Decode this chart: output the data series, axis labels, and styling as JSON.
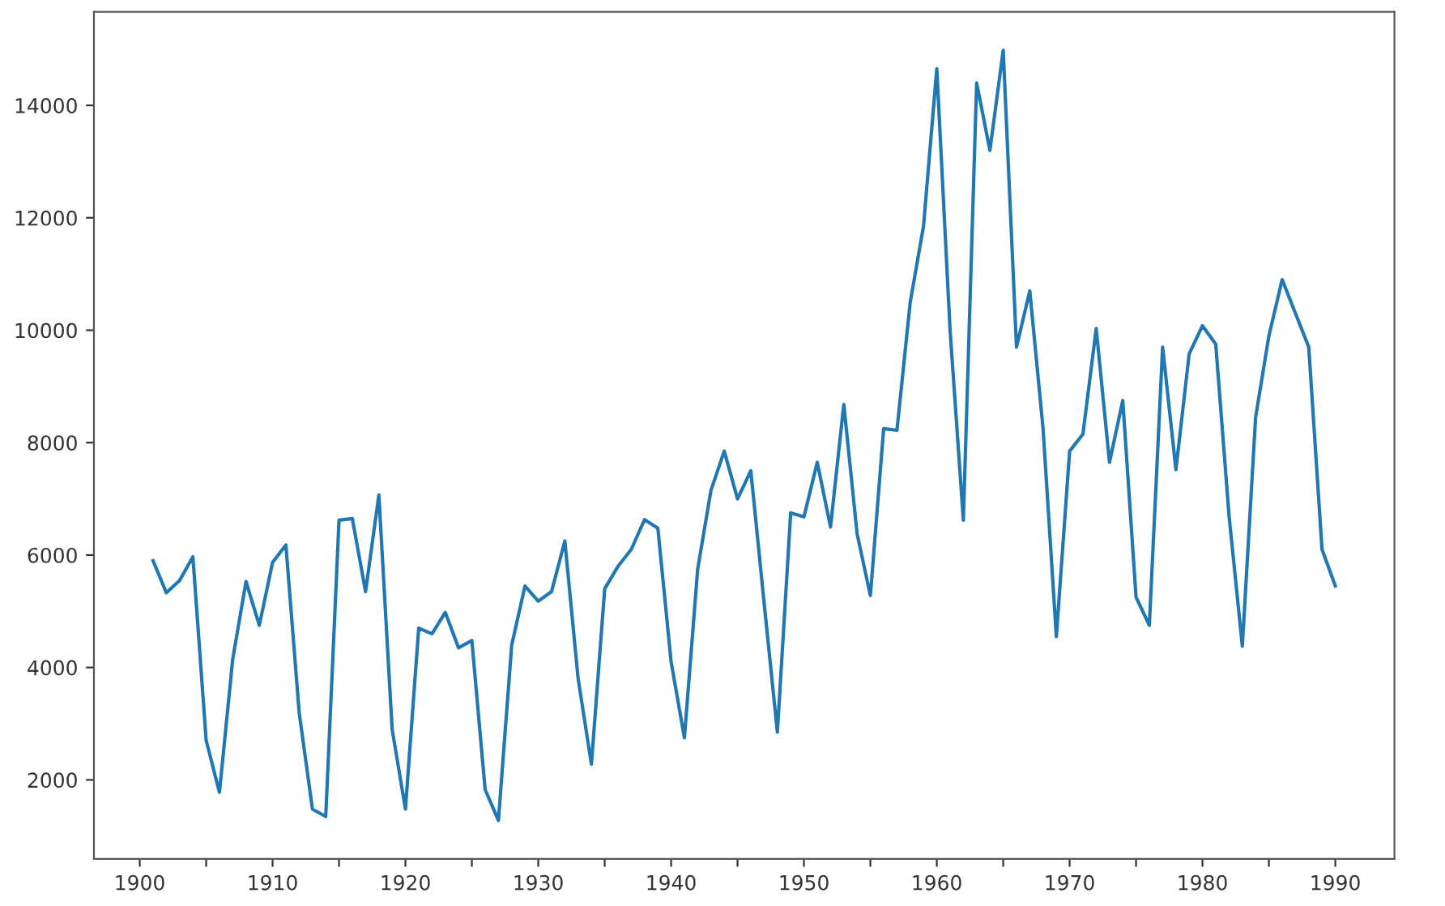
{
  "chart_data": {
    "type": "line",
    "x": [
      1901,
      1902,
      1903,
      1904,
      1905,
      1906,
      1907,
      1908,
      1909,
      1910,
      1911,
      1912,
      1913,
      1914,
      1915,
      1916,
      1917,
      1918,
      1919,
      1920,
      1921,
      1922,
      1923,
      1924,
      1925,
      1926,
      1927,
      1928,
      1929,
      1930,
      1931,
      1932,
      1933,
      1934,
      1935,
      1936,
      1937,
      1938,
      1939,
      1940,
      1941,
      1942,
      1943,
      1944,
      1945,
      1946,
      1947,
      1948,
      1949,
      1950,
      1951,
      1952,
      1953,
      1954,
      1955,
      1956,
      1957,
      1958,
      1959,
      1960,
      1961,
      1962,
      1963,
      1964,
      1965,
      1966,
      1967,
      1968,
      1969,
      1970,
      1971,
      1972,
      1973,
      1974,
      1975,
      1976,
      1977,
      1978,
      1979,
      1980,
      1981,
      1982,
      1983,
      1984,
      1985,
      1986,
      1987,
      1988,
      1989,
      1990
    ],
    "series": [
      {
        "color": "#1f77b4",
        "values": [
          5900,
          5330,
          5550,
          5970,
          2700,
          1780,
          4150,
          5530,
          4750,
          5870,
          6180,
          3200,
          1480,
          1350,
          6620,
          6650,
          5350,
          7070,
          2900,
          1480,
          4700,
          4600,
          4980,
          4350,
          4480,
          1830,
          1280,
          4400,
          5450,
          5180,
          5350,
          6250,
          3800,
          2280,
          5400,
          5800,
          6100,
          6630,
          6480,
          4100,
          2750,
          5750,
          7150,
          7850,
          7000,
          7500,
          5150,
          2850,
          6750,
          6680,
          7650,
          6500,
          8680,
          6380,
          5280,
          8250,
          8220,
          10500,
          11850,
          14650,
          10000,
          6620,
          14400,
          13200,
          14980,
          9700,
          10700,
          8250,
          4550,
          7850,
          8150,
          10030,
          7650,
          8750,
          5250,
          4750,
          9700,
          7520,
          9580,
          10080,
          9750,
          6700,
          4380,
          8450,
          9900,
          10900,
          10300,
          9700,
          6100,
          5450
        ]
      }
    ],
    "xlim": [
      1896.55,
      1994.45
    ],
    "xticks": [
      1900,
      {
        "value": 1905,
        "label": null
      },
      1910,
      {
        "value": 1915,
        "label": null
      },
      1920,
      {
        "value": 1925,
        "label": null
      },
      1930,
      {
        "value": 1935,
        "label": null
      },
      1940,
      {
        "value": 1945,
        "label": null
      },
      1950,
      {
        "value": 1955,
        "label": null
      },
      1960,
      {
        "value": 1965,
        "label": null
      },
      1970,
      {
        "value": 1975,
        "label": null
      },
      1980,
      {
        "value": 1985,
        "label": null
      },
      1990
    ],
    "ylim": [
      595,
      15665
    ],
    "yticks": [
      2000,
      4000,
      6000,
      8000,
      10000,
      12000,
      14000
    ],
    "grid": false,
    "marker": "none",
    "line_style": "solid"
  }
}
